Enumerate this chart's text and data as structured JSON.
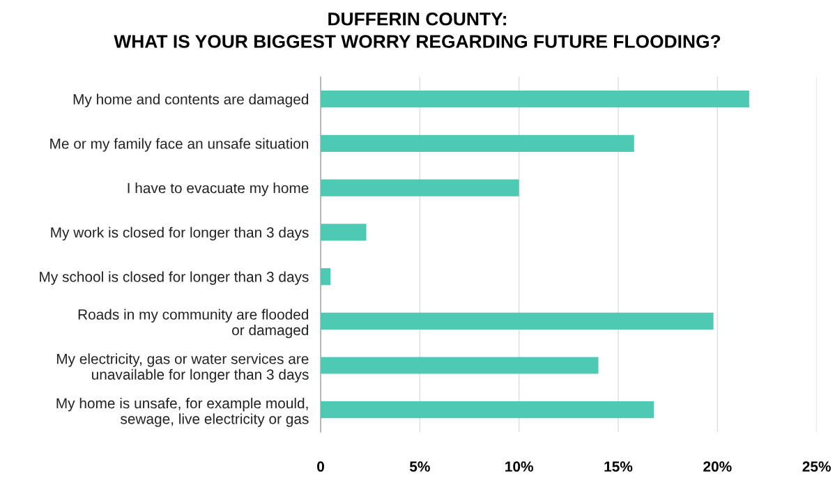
{
  "chart_data": {
    "type": "bar",
    "orientation": "horizontal",
    "title": "DUFFERIN COUNTY:\nWHAT IS YOUR BIGGEST WORRY REGARDING FUTURE FLOODING?",
    "categories": [
      "My home and contents are damaged",
      "Me or my family face an unsafe situation",
      "I have to evacuate my home",
      "My work is closed for longer than 3 days",
      "My school is closed for longer than 3 days",
      "Roads in my community are flooded\nor damaged",
      "My electricity, gas or water services are\nunavailable for longer than 3 days",
      "My home is unsafe, for example mould,\nsewage, live electricity or gas"
    ],
    "values": [
      21.6,
      15.8,
      10.0,
      2.3,
      0.5,
      19.8,
      14.0,
      16.8
    ],
    "color": "#4ec9b4",
    "xlim": [
      0,
      25
    ],
    "xticks": [
      {
        "value": 0,
        "label": "0"
      },
      {
        "value": 5,
        "label": "5%"
      },
      {
        "value": 10,
        "label": "10%"
      },
      {
        "value": 15,
        "label": "15%"
      },
      {
        "value": 20,
        "label": "20%"
      },
      {
        "value": 25,
        "label": "25%"
      }
    ],
    "grid": "x"
  }
}
